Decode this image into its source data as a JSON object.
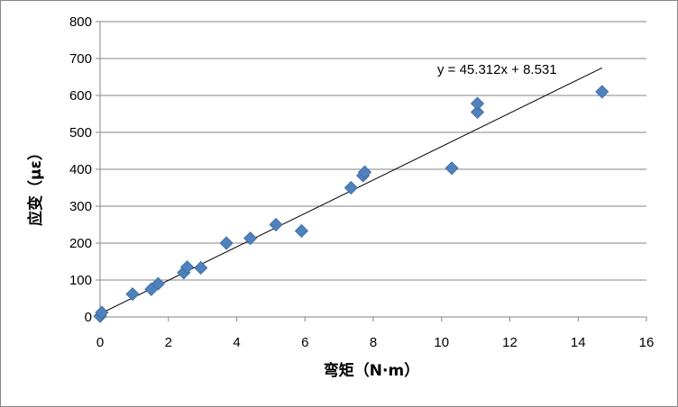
{
  "chart_data": {
    "type": "scatter",
    "xlabel": "弯矩（N·m）",
    "ylabel": "应变（με）",
    "xlim": [
      0,
      16
    ],
    "ylim": [
      0,
      800
    ],
    "x_ticks": [
      0,
      2,
      4,
      6,
      8,
      10,
      12,
      14,
      16
    ],
    "y_ticks": [
      0,
      100,
      200,
      300,
      400,
      500,
      600,
      700,
      800
    ],
    "x_tick_labels": [
      "0",
      "2",
      "4",
      "6",
      "8",
      "10",
      "12",
      "14",
      "16"
    ],
    "y_tick_labels": [
      "0",
      "100",
      "200",
      "300",
      "400",
      "500",
      "600",
      "700",
      "800"
    ],
    "grid": "horizontal",
    "marker": "diamond",
    "marker_color": "#4F81BD",
    "trendline_color": "#000000",
    "series": [
      {
        "x": [
          0,
          0.05,
          0.95,
          1.5,
          1.7,
          2.45,
          2.55,
          2.95,
          3.7,
          4.4,
          5.15,
          5.9,
          7.35,
          7.7,
          7.75,
          10.3,
          11.05,
          11.05,
          14.7
        ],
        "y": [
          2,
          12,
          62,
          75,
          90,
          120,
          135,
          133,
          200,
          213,
          250,
          233,
          350,
          383,
          392,
          403,
          555,
          578,
          610
        ]
      }
    ],
    "trendline": {
      "slope": 45.312,
      "intercept": 8.531,
      "x_range": [
        0,
        14.7
      ],
      "label": "y = 45.312x + 8.531"
    }
  }
}
